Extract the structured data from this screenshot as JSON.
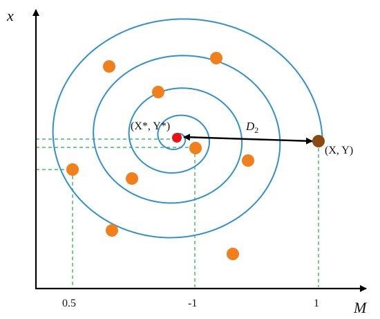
{
  "axes": {
    "y_label": "x",
    "x_label": "M"
  },
  "ticks": [
    "0.5",
    "-1",
    "1"
  ],
  "labels": {
    "center_point": "(X*, Y*)",
    "distance": "D",
    "distance_sub": "2",
    "current_point": "(X, Y)"
  },
  "colors": {
    "spiral": "#2f8fd0",
    "dot": "#f07f1c",
    "center": "#ee1111",
    "current": "#8a4a14",
    "guide": "#22aa44",
    "axis": "#000000"
  }
}
